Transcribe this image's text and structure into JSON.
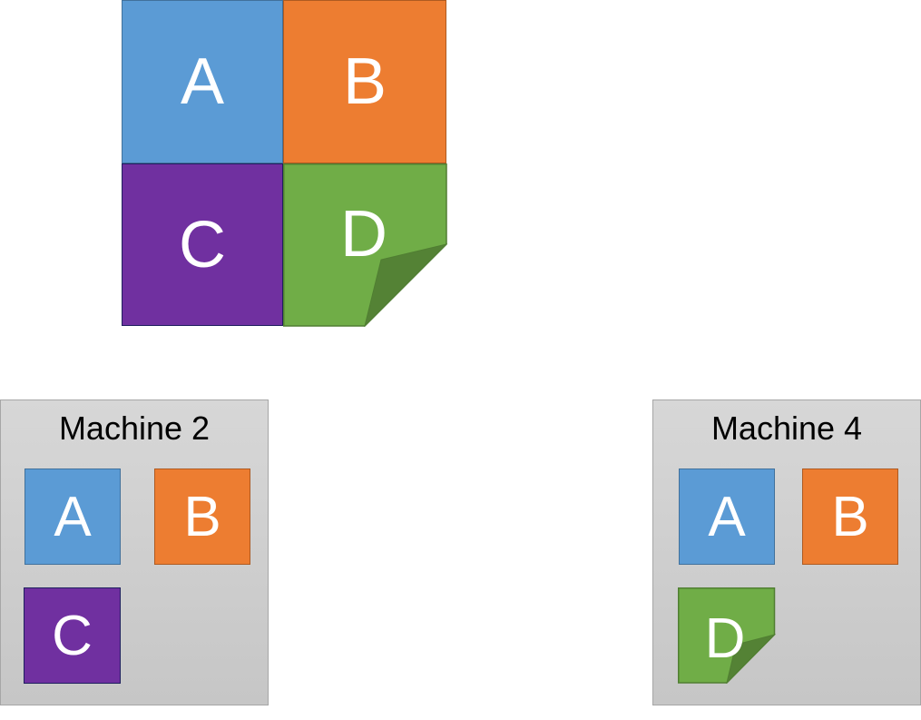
{
  "diagram": {
    "blocks": {
      "a": {
        "label": "A",
        "color": "#5b9bd5",
        "border": "#41719c"
      },
      "b": {
        "label": "B",
        "color": "#ed7d31",
        "border": "#ae5a21"
      },
      "c": {
        "label": "C",
        "color": "#7030a0",
        "border": "#1f1f5f"
      },
      "d": {
        "label": "D",
        "color": "#70ad47",
        "border": "#507e32",
        "fold_color": "#548235"
      }
    },
    "machines": [
      {
        "title": "Machine 2",
        "blocks": [
          "A",
          "B",
          "C"
        ]
      },
      {
        "title": "Machine 4",
        "blocks": [
          "A",
          "B",
          "D"
        ]
      }
    ],
    "machine_background": "#d0d0d0"
  }
}
